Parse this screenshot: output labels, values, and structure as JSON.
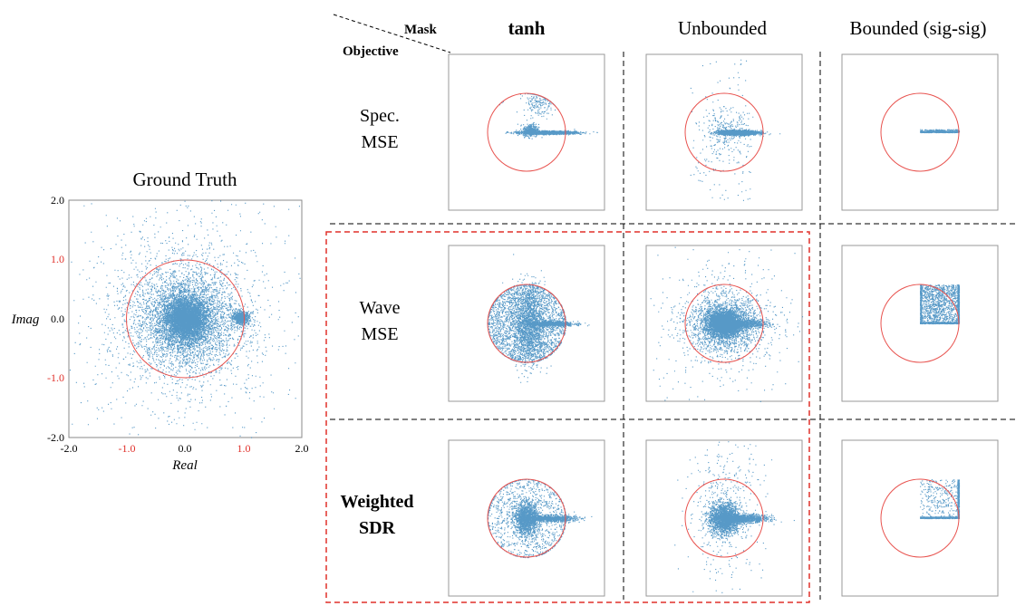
{
  "ground_truth": {
    "title": "Ground Truth",
    "xlabel": "Real",
    "ylabel": "Imag",
    "x_ticks": [
      "-2.0",
      "-1.0",
      "0.0",
      "1.0",
      "2.0"
    ],
    "y_ticks": [
      "2.0",
      "1.0",
      "0.0",
      "-1.0",
      "-2.0"
    ],
    "highlight_tick_color": "#e0302a"
  },
  "corner": {
    "mask_label": "Mask",
    "objective_label": "Objective"
  },
  "columns": [
    {
      "label": "tanh",
      "bold": true
    },
    {
      "label": "Unbounded",
      "bold": false
    },
    {
      "label": "Bounded (sig-sig)",
      "bold": false
    }
  ],
  "rows": [
    {
      "line1": "Spec.",
      "line2": "MSE",
      "bold": false
    },
    {
      "line1": "Wave",
      "line2": "MSE",
      "bold": false
    },
    {
      "line1": "Weighted",
      "line2": "SDR",
      "bold": true
    }
  ],
  "colors": {
    "points": "#1f77b4",
    "unit_circle": "#e8534f",
    "highlight_box": "#e0302a",
    "divider": "#000000"
  },
  "chart_data": [
    {
      "type": "scatter",
      "title": "Ground Truth",
      "xlabel": "Real",
      "ylabel": "Imag",
      "xlim": [
        -2,
        2
      ],
      "ylim": [
        -2,
        2
      ],
      "reference": "unit circle",
      "clusters": [
        {
          "center": [
            0.0,
            0.0
          ],
          "spread": 0.18,
          "share": 0.45
        },
        {
          "center": [
            0.0,
            0.0
          ],
          "spread": 0.45,
          "share": 0.35
        },
        {
          "center": [
            0.0,
            0.0
          ],
          "spread": 1.0,
          "share": 0.12
        },
        {
          "center": [
            0.95,
            0.03
          ],
          "spread": 0.07,
          "share": 0.08
        }
      ]
    },
    {
      "type": "scatter",
      "row": "Spec. MSE",
      "column": "tanh",
      "xlim": [
        -2,
        2
      ],
      "ylim": [
        -2,
        2
      ],
      "clusters": [
        {
          "center": [
            0.55,
            0.0
          ],
          "spread_x": 0.35,
          "spread_y": 0.02
        }
      ]
    },
    {
      "type": "scatter",
      "row": "Spec. MSE",
      "column": "Unbounded",
      "xlim": [
        -2,
        2
      ],
      "ylim": [
        -2,
        2
      ],
      "clusters": [
        {
          "center": [
            0.4,
            0.0
          ],
          "spread_x": 0.25,
          "spread_y": 0.03
        }
      ]
    },
    {
      "type": "scatter",
      "row": "Spec. MSE",
      "column": "Bounded (sig-sig)",
      "xlim": [
        -2,
        2
      ],
      "ylim": [
        -2,
        2
      ],
      "clusters": [
        {
          "center": [
            0.5,
            0.02
          ],
          "spread_x": 0.3,
          "spread_y": 0.01
        }
      ]
    },
    {
      "type": "scatter",
      "row": "Wave MSE",
      "column": "tanh",
      "xlim": [
        -2,
        2
      ],
      "ylim": [
        -2,
        2
      ],
      "clusters": [
        {
          "region": "unit disk"
        },
        {
          "center": [
            0.6,
            0.0
          ],
          "spread_x": 0.3,
          "spread_y": 0.03
        }
      ]
    },
    {
      "type": "scatter",
      "row": "Wave MSE",
      "column": "Unbounded",
      "xlim": [
        -2,
        2
      ],
      "ylim": [
        -2,
        2
      ],
      "clusters": [
        {
          "center": [
            0.0,
            0.0
          ],
          "spread": 0.2
        },
        {
          "center": [
            0.0,
            0.0
          ],
          "spread": 0.7
        }
      ]
    },
    {
      "type": "scatter",
      "row": "Wave MSE",
      "column": "Bounded (sig-sig)",
      "xlim": [
        -2,
        2
      ],
      "ylim": [
        -2,
        2
      ],
      "clusters": [
        {
          "region": "square [0,1]x[0,1]"
        }
      ]
    },
    {
      "type": "scatter",
      "row": "Weighted SDR",
      "column": "tanh",
      "xlim": [
        -2,
        2
      ],
      "ylim": [
        -2,
        2
      ],
      "clusters": [
        {
          "center": [
            0.0,
            0.0
          ],
          "spread": 0.2
        },
        {
          "center": [
            0.6,
            0.0
          ],
          "spread_x": 0.3,
          "spread_y": 0.04
        },
        {
          "region": "unit disk"
        }
      ]
    },
    {
      "type": "scatter",
      "row": "Weighted SDR",
      "column": "Unbounded",
      "xlim": [
        -2,
        2
      ],
      "ylim": [
        -2,
        2
      ],
      "clusters": [
        {
          "center": [
            0.0,
            0.0
          ],
          "spread": 0.25
        },
        {
          "center": [
            0.5,
            0.0
          ],
          "spread_x": 0.3,
          "spread_y": 0.04
        }
      ]
    },
    {
      "type": "scatter",
      "row": "Weighted SDR",
      "column": "Bounded (sig-sig)",
      "xlim": [
        -2,
        2
      ],
      "ylim": [
        -2,
        2
      ],
      "clusters": [
        {
          "region": "square [0,1]x[0,1], dense at y=0 and x=1"
        }
      ]
    }
  ]
}
